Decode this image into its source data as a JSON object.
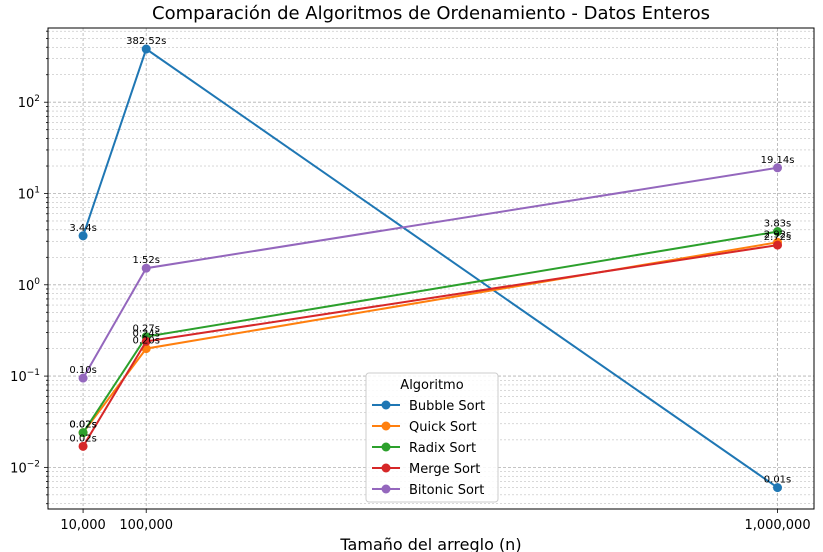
{
  "chart_data": {
    "type": "line",
    "title": "Comparación de Algoritmos de Ordenamiento - Datos Enteros",
    "xlabel": "Tamaño del arreglo (n)",
    "ylabel": "",
    "x": [
      10000,
      100000,
      1000000
    ],
    "x_tick_labels": [
      "10,000",
      "100,000",
      "1,000,000"
    ],
    "y_scale": "log",
    "ylim": [
      0.0035,
      650
    ],
    "y_tick_labels": [
      {
        "base": "10",
        "exp": "−2"
      },
      {
        "base": "10",
        "exp": "−1"
      },
      {
        "base": "10",
        "exp": "0"
      },
      {
        "base": "10",
        "exp": "1"
      },
      {
        "base": "10",
        "exp": "2"
      }
    ],
    "grid": true,
    "legend": {
      "title": "Algoritmo",
      "position": "lower-center"
    },
    "series": [
      {
        "name": "Bubble Sort",
        "color": "#1f77b4",
        "values": [
          3.44,
          382.52,
          0.006
        ],
        "labels": [
          "3.44s",
          "382.52s",
          "0.01s"
        ]
      },
      {
        "name": "Quick Sort",
        "color": "#ff7f0e",
        "values": [
          0.024,
          0.2,
          2.92
        ],
        "labels": [
          "0.02s",
          "0.20s",
          "2.92s"
        ]
      },
      {
        "name": "Radix Sort",
        "color": "#2ca02c",
        "values": [
          0.024,
          0.27,
          3.83
        ],
        "labels": [
          "0.02s",
          "0.27s",
          "3.83s"
        ]
      },
      {
        "name": "Merge Sort",
        "color": "#d62728",
        "values": [
          0.017,
          0.24,
          2.72
        ],
        "labels": [
          "0.02s",
          "0.24s",
          "2.72s"
        ]
      },
      {
        "name": "Bitonic Sort",
        "color": "#9467bd",
        "values": [
          0.095,
          1.52,
          19.14
        ],
        "labels": [
          "0.10s",
          "1.52s",
          "19.14s"
        ]
      }
    ]
  }
}
